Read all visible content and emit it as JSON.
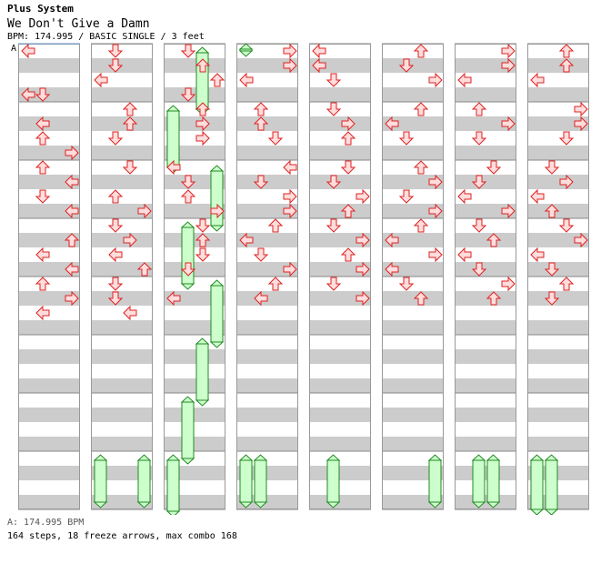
{
  "header": {
    "group": "Plus System",
    "title": "We Don't Give a Damn",
    "info": "BPM: 174.995 / BASIC SINGLE / 3 feet"
  },
  "chart": {
    "bpm_marker_label": "A",
    "colors": {
      "stripe_light": "#ffffff",
      "stripe_dark": "#cccccc",
      "arrow_fill": "#ffdddd",
      "arrow_stroke": "#dd2222",
      "freeze_fill": "#ccffcc",
      "freeze_stroke": "#228822",
      "marker_line": "#6699cc"
    },
    "columns": [
      [
        [
          0,
          0,
          "L"
        ],
        [
          1.5,
          0,
          "L"
        ],
        [
          1.5,
          1,
          "D"
        ],
        [
          2.5,
          1,
          "L"
        ],
        [
          3,
          1,
          "U"
        ],
        [
          3.5,
          3,
          "R"
        ],
        [
          4,
          1,
          "U"
        ],
        [
          4.5,
          3,
          "L"
        ],
        [
          5,
          1,
          "D"
        ],
        [
          5.5,
          3,
          "L"
        ],
        [
          6.5,
          3,
          "U"
        ],
        [
          7,
          1,
          "L"
        ],
        [
          7.5,
          3,
          "L"
        ],
        [
          8,
          1,
          "U"
        ],
        [
          8.5,
          3,
          "R"
        ],
        [
          9,
          1,
          "L"
        ]
      ],
      [
        [
          0,
          1,
          "D"
        ],
        [
          0.5,
          1,
          "D"
        ],
        [
          1,
          0,
          "L"
        ],
        [
          2,
          2,
          "U"
        ],
        [
          2.5,
          2,
          "U"
        ],
        [
          3,
          1,
          "D"
        ],
        [
          4,
          2,
          "D"
        ],
        [
          5,
          1,
          "U"
        ],
        [
          5.5,
          3,
          "R"
        ],
        [
          6,
          1,
          "D"
        ],
        [
          6.5,
          2,
          "R"
        ],
        [
          7,
          1,
          "L"
        ],
        [
          7.5,
          3,
          "U"
        ],
        [
          8,
          1,
          "D"
        ],
        [
          8.5,
          1,
          "D"
        ],
        [
          9,
          2,
          "L"
        ]
      ],
      [
        [
          0,
          1,
          "D"
        ],
        [
          0.5,
          2,
          "U"
        ],
        [
          1,
          3,
          "U"
        ],
        [
          1.5,
          1,
          "D"
        ],
        [
          2,
          2,
          "U"
        ],
        [
          2.5,
          2,
          "R"
        ],
        [
          3,
          2,
          "R"
        ],
        [
          4,
          0,
          "L"
        ],
        [
          4.5,
          1,
          "D"
        ],
        [
          5,
          1,
          "U"
        ],
        [
          5.5,
          3,
          "R"
        ],
        [
          6,
          2,
          "D"
        ],
        [
          6.5,
          2,
          "U"
        ],
        [
          7,
          2,
          "D"
        ],
        [
          7.5,
          1,
          "D"
        ],
        [
          8.5,
          0,
          "L"
        ]
      ],
      [
        [
          0,
          3,
          "R"
        ],
        [
          0.5,
          3,
          "R"
        ],
        [
          1,
          0,
          "L"
        ],
        [
          2,
          1,
          "U"
        ],
        [
          2.5,
          1,
          "U"
        ],
        [
          3,
          2,
          "D"
        ],
        [
          4,
          3,
          "L"
        ],
        [
          4.5,
          1,
          "D"
        ],
        [
          5,
          3,
          "R"
        ],
        [
          5.5,
          3,
          "R"
        ],
        [
          6,
          2,
          "U"
        ],
        [
          6.5,
          0,
          "L"
        ],
        [
          7,
          1,
          "D"
        ],
        [
          7.5,
          3,
          "R"
        ],
        [
          8,
          2,
          "U"
        ],
        [
          8.5,
          1,
          "L"
        ]
      ],
      [
        [
          0,
          0,
          "L"
        ],
        [
          0.5,
          0,
          "L"
        ],
        [
          1,
          1,
          "D"
        ],
        [
          2,
          1,
          "D"
        ],
        [
          2.5,
          2,
          "R"
        ],
        [
          3,
          2,
          "U"
        ],
        [
          4,
          2,
          "D"
        ],
        [
          4.5,
          1,
          "D"
        ],
        [
          5,
          3,
          "R"
        ],
        [
          5.5,
          2,
          "U"
        ],
        [
          6,
          1,
          "D"
        ],
        [
          6.5,
          3,
          "R"
        ],
        [
          7,
          2,
          "U"
        ],
        [
          7.5,
          3,
          "R"
        ],
        [
          8,
          1,
          "D"
        ],
        [
          8.5,
          3,
          "R"
        ]
      ],
      [
        [
          0,
          2,
          "U"
        ],
        [
          0.5,
          1,
          "D"
        ],
        [
          1,
          3,
          "R"
        ],
        [
          2,
          2,
          "U"
        ],
        [
          2.5,
          0,
          "L"
        ],
        [
          3,
          1,
          "D"
        ],
        [
          4,
          2,
          "U"
        ],
        [
          4.5,
          3,
          "R"
        ],
        [
          5,
          1,
          "D"
        ],
        [
          5.5,
          3,
          "R"
        ],
        [
          6,
          2,
          "U"
        ],
        [
          6.5,
          0,
          "L"
        ],
        [
          7,
          3,
          "R"
        ],
        [
          7.5,
          0,
          "L"
        ],
        [
          8,
          1,
          "D"
        ],
        [
          8.5,
          2,
          "U"
        ]
      ],
      [
        [
          0,
          3,
          "R"
        ],
        [
          0.5,
          3,
          "R"
        ],
        [
          1,
          0,
          "L"
        ],
        [
          2,
          1,
          "U"
        ],
        [
          2.5,
          3,
          "R"
        ],
        [
          3,
          1,
          "D"
        ],
        [
          4,
          2,
          "D"
        ],
        [
          4.5,
          1,
          "D"
        ],
        [
          5,
          0,
          "L"
        ],
        [
          5.5,
          3,
          "R"
        ],
        [
          6,
          1,
          "D"
        ],
        [
          6.5,
          2,
          "U"
        ],
        [
          7,
          0,
          "L"
        ],
        [
          7.5,
          1,
          "D"
        ],
        [
          8,
          3,
          "R"
        ],
        [
          8.5,
          2,
          "U"
        ]
      ],
      [
        [
          0,
          2,
          "U"
        ],
        [
          0.5,
          2,
          "U"
        ],
        [
          1,
          0,
          "L"
        ],
        [
          2,
          3,
          "R"
        ],
        [
          2.5,
          3,
          "R"
        ],
        [
          3,
          2,
          "D"
        ],
        [
          4,
          1,
          "D"
        ],
        [
          4.5,
          2,
          "R"
        ],
        [
          5,
          0,
          "L"
        ],
        [
          5.5,
          1,
          "U"
        ],
        [
          6,
          2,
          "D"
        ],
        [
          6.5,
          3,
          "R"
        ],
        [
          7,
          0,
          "L"
        ],
        [
          7.5,
          1,
          "D"
        ],
        [
          8,
          2,
          "U"
        ],
        [
          8.5,
          1,
          "D"
        ]
      ]
    ]
  },
  "footer": {
    "bpm": "A: 174.995 BPM",
    "stats": "164 steps, 18 freeze arrows, max combo 168"
  }
}
